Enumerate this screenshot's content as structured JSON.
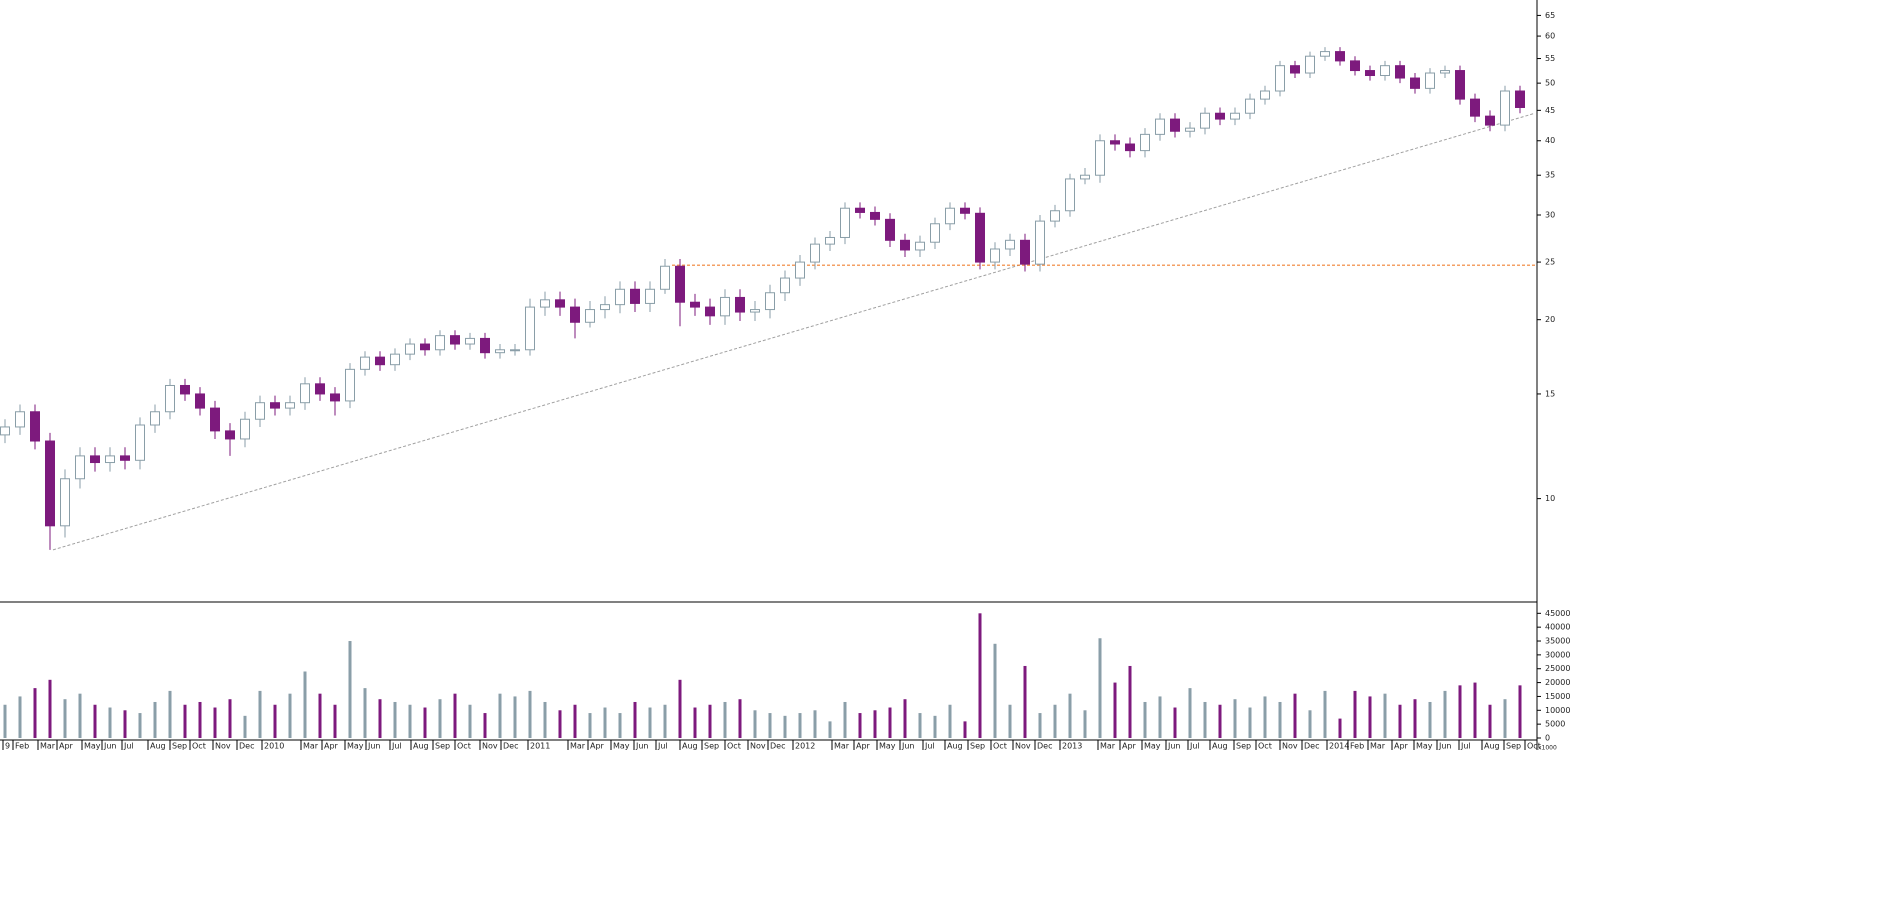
{
  "chart_data": {
    "type": "candlestick",
    "x": [
      1,
      4,
      7,
      10,
      13,
      16,
      19,
      22,
      25,
      28,
      31,
      34,
      37,
      40,
      43,
      46,
      49,
      52,
      55,
      58,
      61,
      64,
      67,
      70,
      73,
      76,
      79,
      82,
      85,
      88,
      91,
      94,
      97,
      100,
      103,
      106,
      109,
      112,
      115,
      118,
      121,
      124,
      127,
      130,
      133,
      136,
      139,
      142,
      145,
      148,
      151,
      154,
      157,
      160,
      163,
      166,
      169,
      172,
      175,
      178,
      181,
      184,
      187,
      190,
      193,
      196,
      199,
      202,
      205,
      208,
      211,
      214,
      217,
      220,
      223,
      226,
      229,
      232,
      235,
      238,
      241,
      244,
      247,
      250,
      253,
      256,
      259,
      262,
      265,
      268,
      271,
      274,
      277,
      280,
      283,
      286,
      289,
      292,
      295,
      298,
      301,
      304
    ],
    "open": [
      12.8,
      13.2,
      14,
      12.5,
      9.0,
      10.8,
      11.8,
      11.5,
      11.8,
      11.6,
      13.3,
      14.0,
      15.5,
      15.0,
      14.2,
      13.0,
      12.6,
      13.6,
      14.5,
      14.2,
      14.5,
      15.6,
      15.0,
      14.6,
      16.5,
      17.3,
      16.8,
      17.5,
      18.2,
      17.8,
      18.8,
      18.2,
      18.6,
      17.6,
      17.8,
      17.8,
      21.0,
      21.6,
      21.0,
      19.8,
      20.8,
      21.2,
      22.5,
      21.3,
      22.5,
      24.6,
      21.4,
      21.0,
      20.3,
      21.8,
      20.6,
      20.8,
      22.2,
      23.5,
      25.0,
      26.8,
      27.5,
      30.8,
      30.3,
      29.5,
      27.2,
      26.2,
      27.0,
      29.0,
      30.8,
      30.2,
      25.0,
      26.3,
      27.2,
      24.8,
      29.3,
      30.5,
      34.5,
      35.0,
      40.0,
      39.5,
      38.5,
      41.0,
      43.5,
      41.5,
      42.0,
      44.5,
      43.5,
      44.5,
      47.0,
      48.5,
      53.5,
      52.0,
      55.5,
      56.5,
      54.5,
      52.5,
      51.5,
      53.5,
      51.0,
      49.0,
      52.0,
      52.5,
      47.0,
      44.0,
      42.5,
      48.5
    ],
    "high": [
      13.6,
      14.4,
      14.4,
      12.9,
      11.2,
      12.2,
      12.2,
      12.2,
      12.2,
      13.7,
      14.4,
      15.9,
      15.9,
      15.4,
      14.6,
      13.4,
      14.0,
      14.9,
      14.9,
      14.9,
      16.0,
      16.0,
      15.4,
      16.9,
      17.7,
      17.7,
      17.9,
      18.6,
      18.6,
      19.2,
      19.2,
      19.0,
      19.0,
      18.2,
      18.2,
      21.7,
      22.3,
      22.3,
      21.7,
      21.5,
      21.9,
      23.2,
      23.2,
      23.2,
      25.3,
      25.3,
      22.1,
      21.7,
      22.5,
      22.5,
      21.5,
      22.9,
      24.2,
      25.7,
      27.5,
      28.2,
      31.5,
      31.5,
      31.0,
      30.2,
      27.9,
      27.7,
      29.7,
      31.5,
      31.5,
      30.9,
      27.0,
      27.9,
      27.9,
      30.0,
      31.2,
      35.2,
      36.0,
      41.0,
      41.0,
      40.5,
      42.0,
      44.5,
      44.5,
      43.0,
      45.5,
      45.5,
      45.5,
      48.0,
      49.5,
      54.5,
      54.5,
      56.5,
      57.5,
      57.5,
      55.5,
      53.5,
      54.5,
      54.5,
      52.0,
      53.0,
      53.5,
      53.5,
      48.0,
      45.0,
      49.5,
      49.5
    ],
    "low": [
      12.4,
      12.8,
      12.1,
      8.2,
      8.6,
      10.4,
      11.1,
      11.1,
      11.2,
      11.2,
      12.9,
      13.6,
      14.6,
      13.8,
      12.6,
      11.8,
      12.2,
      13.2,
      13.8,
      13.8,
      14.1,
      14.6,
      13.8,
      14.2,
      16.1,
      16.4,
      16.4,
      17.1,
      17.4,
      17.4,
      17.8,
      17.8,
      17.2,
      17.2,
      17.4,
      17.4,
      20.3,
      20.3,
      18.6,
      19.4,
      20.1,
      20.5,
      20.6,
      20.6,
      22.1,
      19.5,
      20.3,
      19.6,
      19.6,
      19.9,
      19.9,
      20.1,
      21.5,
      22.8,
      24.3,
      26.1,
      26.8,
      29.6,
      28.8,
      26.5,
      25.5,
      25.5,
      26.3,
      28.3,
      29.5,
      24.3,
      24.3,
      25.6,
      24.1,
      24.1,
      28.6,
      29.8,
      33.8,
      34.0,
      38.5,
      37.5,
      37.5,
      40.0,
      40.5,
      40.5,
      41.0,
      42.5,
      42.5,
      43.5,
      46.0,
      47.5,
      51.0,
      51.0,
      54.5,
      53.5,
      51.5,
      50.5,
      50.5,
      50.0,
      48.0,
      48.0,
      51.0,
      46.0,
      43.0,
      41.5,
      41.5,
      44.5
    ],
    "close": [
      13.2,
      14,
      12.5,
      9.0,
      10.8,
      11.8,
      11.5,
      11.8,
      11.6,
      13.3,
      14.0,
      15.5,
      15.0,
      14.2,
      13.0,
      12.6,
      13.6,
      14.5,
      14.2,
      14.5,
      15.6,
      15.0,
      14.6,
      16.5,
      17.3,
      16.8,
      17.5,
      18.2,
      17.8,
      18.8,
      18.2,
      18.6,
      17.6,
      17.8,
      17.8,
      21.0,
      21.6,
      21.0,
      19.8,
      20.8,
      21.2,
      22.5,
      21.3,
      22.5,
      24.6,
      21.4,
      21.0,
      20.3,
      21.8,
      20.6,
      20.8,
      22.2,
      23.5,
      25.0,
      26.8,
      27.5,
      30.8,
      30.3,
      29.5,
      27.2,
      26.2,
      27.0,
      29.0,
      30.8,
      30.2,
      25.0,
      26.3,
      27.2,
      24.8,
      29.3,
      30.5,
      34.5,
      35.0,
      40.0,
      39.5,
      38.5,
      41.0,
      43.5,
      41.5,
      42.0,
      44.5,
      43.5,
      44.5,
      47.0,
      48.5,
      53.5,
      52.0,
      55.5,
      56.5,
      54.5,
      52.5,
      51.5,
      53.5,
      51.0,
      49.0,
      52.0,
      52.5,
      47.0,
      44.0,
      42.5,
      48.5,
      45.5
    ],
    "volume": [
      12000,
      15000,
      18000,
      21000,
      14000,
      16000,
      12000,
      11000,
      10000,
      9000,
      13000,
      17000,
      12000,
      13000,
      11000,
      14000,
      8000,
      17000,
      12000,
      16000,
      24000,
      16000,
      12000,
      35000,
      18000,
      14000,
      13000,
      12000,
      11000,
      14000,
      16000,
      12000,
      9000,
      16000,
      15000,
      17000,
      13000,
      10000,
      12000,
      9000,
      11000,
      9000,
      13000,
      11000,
      12000,
      21000,
      11000,
      12000,
      13000,
      14000,
      10000,
      9000,
      8000,
      9000,
      10000,
      6000,
      13000,
      9000,
      10000,
      11000,
      14000,
      9000,
      8000,
      12000,
      6000,
      45000,
      34000,
      12000,
      26000,
      9000,
      12000,
      16000,
      10000,
      36000,
      20000,
      26000,
      13000,
      15000,
      11000,
      18000,
      13000,
      12000,
      14000,
      11000,
      15000,
      13000,
      16000,
      10000,
      17000,
      7000,
      17000,
      15000,
      16000,
      12000,
      14000,
      13000,
      17000,
      19000,
      20000,
      12000,
      14000,
      19000
    ],
    "up_color": "#8a9ea8",
    "down_color": "#7d1a7d",
    "xlim": [
      0,
      307
    ],
    "ylim": [
      6.7,
      69
    ],
    "log_scale": true,
    "yticks": [
      10,
      15,
      20,
      25,
      30,
      35,
      40,
      45,
      50,
      55,
      60,
      65
    ],
    "volume_ylim": [
      0,
      48000
    ],
    "volume_yticks": [
      0,
      5000,
      10000,
      15000,
      20000,
      25000,
      30000,
      35000,
      40000,
      45000
    ],
    "volume_unit_label": "x1000",
    "xticks": [
      {
        "value": 0.6,
        "label": "9"
      },
      {
        "value": 2.6,
        "label": "Feb"
      },
      {
        "value": 7.6,
        "label": "Mar"
      },
      {
        "value": 11.4,
        "label": "Apr"
      },
      {
        "value": 16.4,
        "label": "May"
      },
      {
        "value": 20.4,
        "label": "Jun"
      },
      {
        "value": 24.4,
        "label": "Jul"
      },
      {
        "value": 29.6,
        "label": "Aug"
      },
      {
        "value": 34,
        "label": "Sep"
      },
      {
        "value": 38,
        "label": "Oct"
      },
      {
        "value": 42.6,
        "label": "Nov"
      },
      {
        "value": 47.4,
        "label": "Dec"
      },
      {
        "value": 52.4,
        "label": "2010"
      },
      {
        "value": 60.2,
        "label": "Mar"
      },
      {
        "value": 64.4,
        "label": "Apr"
      },
      {
        "value": 69,
        "label": "May"
      },
      {
        "value": 73.2,
        "label": "Jun"
      },
      {
        "value": 78,
        "label": "Jul"
      },
      {
        "value": 82.2,
        "label": "Aug"
      },
      {
        "value": 86.6,
        "label": "Sep"
      },
      {
        "value": 91,
        "label": "Oct"
      },
      {
        "value": 96,
        "label": "Nov"
      },
      {
        "value": 100.2,
        "label": "Dec"
      },
      {
        "value": 105.6,
        "label": "2011"
      },
      {
        "value": 113.6,
        "label": "Mar"
      },
      {
        "value": 117.6,
        "label": "Apr"
      },
      {
        "value": 122.2,
        "label": "May"
      },
      {
        "value": 126.8,
        "label": "Jun"
      },
      {
        "value": 131.2,
        "label": "Jul"
      },
      {
        "value": 136,
        "label": "Aug"
      },
      {
        "value": 140.4,
        "label": "Sep"
      },
      {
        "value": 145,
        "label": "Oct"
      },
      {
        "value": 149.6,
        "label": "Nov"
      },
      {
        "value": 153.6,
        "label": "Dec"
      },
      {
        "value": 158.6,
        "label": "2012"
      },
      {
        "value": 166.4,
        "label": "Mar"
      },
      {
        "value": 170.8,
        "label": "Apr"
      },
      {
        "value": 175.4,
        "label": "May"
      },
      {
        "value": 180,
        "label": "Jun"
      },
      {
        "value": 184.6,
        "label": "Jul"
      },
      {
        "value": 189,
        "label": "Aug"
      },
      {
        "value": 193.6,
        "label": "Sep"
      },
      {
        "value": 198.2,
        "label": "Oct"
      },
      {
        "value": 202.6,
        "label": "Nov"
      },
      {
        "value": 207,
        "label": "Dec"
      },
      {
        "value": 212,
        "label": "2013"
      },
      {
        "value": 219.6,
        "label": "Mar"
      },
      {
        "value": 224,
        "label": "Apr"
      },
      {
        "value": 228.4,
        "label": "May"
      },
      {
        "value": 233.2,
        "label": "Jun"
      },
      {
        "value": 237.6,
        "label": "Jul"
      },
      {
        "value": 242,
        "label": "Aug"
      },
      {
        "value": 246.8,
        "label": "Sep"
      },
      {
        "value": 251.2,
        "label": "Oct"
      },
      {
        "value": 256,
        "label": "Nov"
      },
      {
        "value": 260.4,
        "label": "Dec"
      },
      {
        "value": 265.4,
        "label": "2014"
      },
      {
        "value": 269.6,
        "label": "Feb"
      },
      {
        "value": 273.6,
        "label": "Mar"
      },
      {
        "value": 278.4,
        "label": "Apr"
      },
      {
        "value": 282.8,
        "label": "May"
      },
      {
        "value": 287.4,
        "label": "Jun"
      },
      {
        "value": 291.8,
        "label": "Jul"
      },
      {
        "value": 296.4,
        "label": "Aug"
      },
      {
        "value": 300.8,
        "label": "Sep"
      },
      {
        "value": 305,
        "label": "Oct"
      }
    ],
    "trendline": {
      "x": [
        10.6,
        307
      ],
      "y": [
        8.2,
        44.5
      ],
      "color": "#a0a0a0"
    },
    "support_line": {
      "x": [
        134.4,
        307
      ],
      "y": 24.7,
      "color": "#f08030"
    }
  }
}
